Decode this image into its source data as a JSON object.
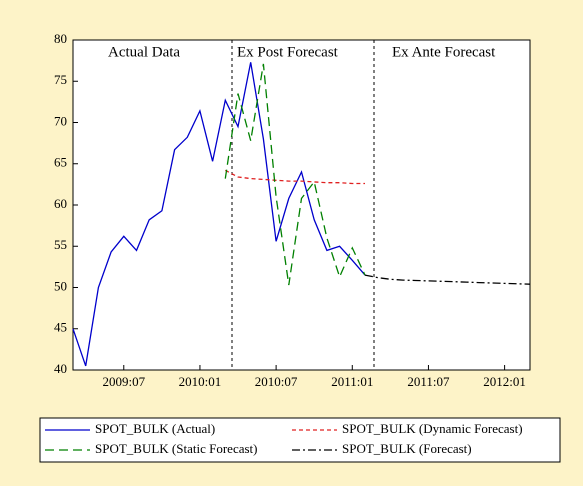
{
  "chart_data": {
    "type": "line",
    "annotations": [
      "Actual Data",
      "Ex Post Forecast",
      "Ex Ante Forecast"
    ],
    "categories": [
      null,
      null,
      null,
      null,
      "2009:07",
      null,
      null,
      null,
      null,
      null,
      "2010:01",
      null,
      null,
      null,
      null,
      null,
      "2010:07",
      null,
      null,
      null,
      null,
      null,
      "2011:01",
      null,
      null,
      null,
      null,
      null,
      "2011:07",
      null,
      null,
      null,
      null,
      null,
      "2012:01",
      null,
      null
    ],
    "ylim": [
      40,
      80
    ],
    "yticks": [
      40,
      45,
      50,
      55,
      60,
      65,
      70,
      75,
      80
    ],
    "series": [
      {
        "name": "SPOT_BULK (Actual)",
        "color": "#0000cc",
        "dash": "solid",
        "values": [
          45,
          40.5,
          50,
          54.3,
          56.2,
          54.5,
          58.2,
          59.3,
          66.7,
          68.2,
          71.4,
          65.3,
          72.7,
          69.5,
          77.3,
          68,
          55.6,
          60.8,
          64,
          58.2,
          54.5,
          55,
          53.3,
          51.5,
          null,
          null,
          null,
          null,
          null,
          null,
          null,
          null,
          null,
          null,
          null,
          null,
          null
        ]
      },
      {
        "name": "SPOT_BULK (Dynamic Forecast)",
        "color": "#e02020",
        "dash": "dashed",
        "values": [
          null,
          null,
          null,
          null,
          null,
          null,
          null,
          null,
          null,
          null,
          null,
          null,
          64.2,
          63.4,
          63.2,
          63.1,
          63,
          62.9,
          62.9,
          62.8,
          62.7,
          62.7,
          62.6,
          62.6,
          null,
          null,
          null,
          null,
          null,
          null,
          null,
          null,
          null,
          null,
          null,
          null,
          null
        ]
      },
      {
        "name": "SPOT_BULK (Static Forecast)",
        "color": "#008000",
        "dash": "long-dashed",
        "values": [
          null,
          null,
          null,
          null,
          null,
          null,
          null,
          null,
          null,
          null,
          null,
          null,
          63.2,
          73.5,
          67.8,
          77.1,
          61,
          50.3,
          60.8,
          62.8,
          56,
          51.3,
          54.8,
          51.5,
          null,
          null,
          null,
          null,
          null,
          null,
          null,
          null,
          null,
          null,
          null,
          null,
          null
        ]
      },
      {
        "name": "SPOT_BULK (Forecast)",
        "color": "#000000",
        "dash": "dash-dot",
        "values": [
          null,
          null,
          null,
          null,
          null,
          null,
          null,
          null,
          null,
          null,
          null,
          null,
          null,
          null,
          null,
          null,
          null,
          null,
          null,
          null,
          null,
          null,
          null,
          51.5,
          51.2,
          51,
          50.9,
          50.85,
          50.8,
          50.75,
          50.7,
          50.65,
          50.6,
          50.55,
          50.5,
          50.45,
          50.4
        ]
      }
    ]
  }
}
